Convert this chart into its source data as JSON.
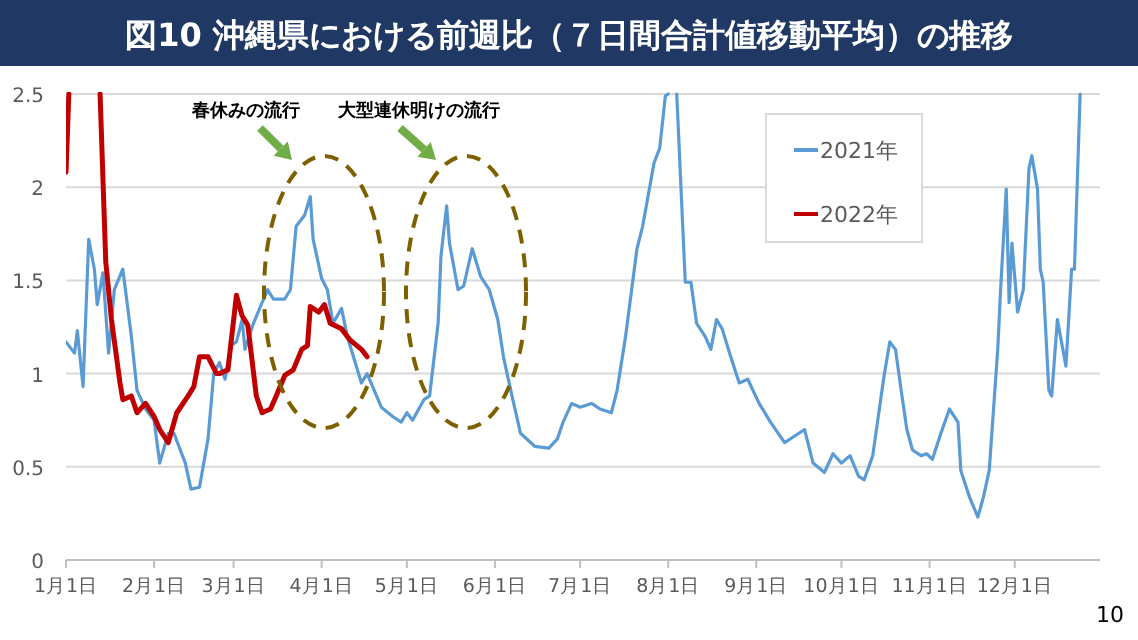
{
  "chart_data": {
    "type": "line",
    "title": "図10 沖縄県における前週比（７日間合計値移動平均）の推移",
    "xlim": [
      "--01-01",
      "--12-31"
    ],
    "xticks": [
      {
        "value": "--01-01",
        "label": "1月1日"
      },
      {
        "value": "--02-01",
        "label": "2月1日"
      },
      {
        "value": "--03-01",
        "label": "3月1日"
      },
      {
        "value": "--04-01",
        "label": "4月1日"
      },
      {
        "value": "--05-01",
        "label": "5月1日"
      },
      {
        "value": "--06-01",
        "label": "6月1日"
      },
      {
        "value": "--07-01",
        "label": "7月1日"
      },
      {
        "value": "--08-01",
        "label": "8月1日"
      },
      {
        "value": "--09-01",
        "label": "9月1日"
      },
      {
        "value": "--10-01",
        "label": "10月1日"
      },
      {
        "value": "--11-01",
        "label": "11月1日"
      },
      {
        "value": "--12-01",
        "label": "12月1日"
      }
    ],
    "ylim": [
      0,
      2.5
    ],
    "yticks": [
      0,
      0.5,
      1,
      1.5,
      2,
      2.5
    ],
    "grid": "y",
    "legend": "top right",
    "line_style": "solid",
    "marker": "none",
    "annotations": [
      "春休みの流行",
      "大型連休明けの流行",
      "10"
    ],
    "series": [
      {
        "name": "2021年",
        "color": "#5b9bd5",
        "x": [
          "--01-01",
          "--01-04",
          "--01-05",
          "--01-07",
          "--01-09",
          "--01-11",
          "--01-12",
          "--01-14",
          "--01-16",
          "--01-18",
          "--01-21",
          "--01-24",
          "--01-26",
          "--01-29",
          "--02-01",
          "--02-03",
          "--02-06",
          "--02-08",
          "--02-12",
          "--02-14",
          "--02-17",
          "--02-20",
          "--02-22",
          "--02-24",
          "--02-26",
          "--02-28",
          "--03-02",
          "--03-04",
          "--03-05",
          "--03-08",
          "--03-11",
          "--03-13",
          "--03-15",
          "--03-19",
          "--03-21",
          "--03-23",
          "--03-26",
          "--03-28",
          "--03-29",
          "--04-01",
          "--04-03",
          "--04-05",
          "--04-08",
          "--04-10",
          "--04-15",
          "--04-17",
          "--04-22",
          "--04-26",
          "--04-29",
          "--05-01",
          "--05-03",
          "--05-07",
          "--05-09",
          "--05-12",
          "--05-13",
          "--05-15",
          "--05-16",
          "--05-19",
          "--05-21",
          "--05-24",
          "--05-27",
          "--05-30",
          "--06-02",
          "--06-04",
          "--06-07",
          "--06-10",
          "--06-15",
          "--06-20",
          "--06-23",
          "--06-25",
          "--06-28",
          "--07-01",
          "--07-05",
          "--07-08",
          "--07-12",
          "--07-14",
          "--07-17",
          "--07-21",
          "--07-23",
          "--07-27",
          "--07-29",
          "--07-31",
          "--08-01",
          "--08-03",
          "--08-04",
          "--08-07",
          "--08-09",
          "--08-11",
          "--08-14",
          "--08-16",
          "--08-18",
          "--08-20",
          "--08-23",
          "--08-26",
          "--08-29",
          "--09-02",
          "--09-06",
          "--09-11",
          "--09-14",
          "--09-18",
          "--09-21",
          "--09-25",
          "--09-28",
          "--10-01",
          "--10-04",
          "--10-07",
          "--10-09",
          "--10-12",
          "--10-16",
          "--10-18",
          "--10-20",
          "--10-22",
          "--10-24",
          "--10-26",
          "--10-29",
          "--10-31",
          "--11-02",
          "--11-05",
          "--11-08",
          "--11-11",
          "--11-12",
          "--11-15",
          "--11-18",
          "--11-20",
          "--11-22",
          "--11-25",
          "--11-26",
          "--11-28",
          "--11-29",
          "--11-30",
          "--12-02",
          "--12-04",
          "--12-06",
          "--12-07",
          "--12-09",
          "--12-10",
          "--12-11",
          "--12-13",
          "--12-14",
          "--12-16",
          "--12-19",
          "--12-21",
          "--12-22",
          "--12-24"
        ],
        "values": [
          1.17,
          1.11,
          1.23,
          0.93,
          1.72,
          1.56,
          1.37,
          1.54,
          1.11,
          1.45,
          1.56,
          1.2,
          0.91,
          0.81,
          0.75,
          0.52,
          0.68,
          0.68,
          0.52,
          0.38,
          0.39,
          0.65,
          1.0,
          1.06,
          0.97,
          1.15,
          1.17,
          1.29,
          1.13,
          1.27,
          1.38,
          1.45,
          1.4,
          1.4,
          1.45,
          1.79,
          1.85,
          1.95,
          1.72,
          1.51,
          1.45,
          1.27,
          1.35,
          1.2,
          0.95,
          1.0,
          0.82,
          0.77,
          0.74,
          0.79,
          0.75,
          0.86,
          0.88,
          1.27,
          1.63,
          1.9,
          1.7,
          1.45,
          1.47,
          1.67,
          1.52,
          1.45,
          1.29,
          1.09,
          0.88,
          0.68,
          0.61,
          0.6,
          0.65,
          0.74,
          0.84,
          0.82,
          0.84,
          0.81,
          0.79,
          0.91,
          1.2,
          1.67,
          1.79,
          2.13,
          2.21,
          2.49,
          2.5,
          null,
          2.5,
          1.49,
          1.49,
          1.27,
          1.2,
          1.13,
          1.29,
          1.24,
          1.09,
          0.95,
          0.97,
          0.84,
          0.74,
          0.63,
          0.66,
          0.7,
          0.52,
          0.47,
          0.57,
          0.52,
          0.56,
          0.45,
          0.43,
          0.56,
          0.99,
          1.17,
          1.13,
          0.91,
          0.7,
          0.59,
          0.56,
          0.57,
          0.54,
          0.68,
          0.81,
          0.74,
          0.48,
          0.34,
          0.23,
          0.34,
          0.48,
          1.13,
          1.45,
          1.99,
          1.38,
          1.7,
          1.33,
          1.45,
          2.1,
          2.17,
          1.99,
          1.56,
          1.49,
          0.91,
          0.88,
          1.29,
          1.04,
          1.56,
          1.56,
          2.5
        ]
      },
      {
        "name": "2022年",
        "color": "#c00000",
        "x": [
          "--01-01",
          "--01-02",
          "--01-03",
          "--01-13",
          "--01-15",
          "--01-17",
          "--01-20",
          "--01-21",
          "--01-24",
          "--01-26",
          "--01-29",
          "--02-01",
          "--02-03",
          "--02-06",
          "--02-09",
          "--02-13",
          "--02-15",
          "--02-17",
          "--02-20",
          "--02-23",
          "--02-24",
          "--02-27",
          "--03-02",
          "--03-04",
          "--03-06",
          "--03-09",
          "--03-11",
          "--03-14",
          "--03-16",
          "--03-19",
          "--03-22",
          "--03-25",
          "--03-27",
          "--03-28",
          "--03-31",
          "--04-02",
          "--04-04",
          "--04-08",
          "--04-11",
          "--04-15",
          "--04-17"
        ],
        "values": [
          2.08,
          2.5,
          null,
          2.5,
          1.6,
          1.29,
          0.95,
          0.86,
          0.88,
          0.79,
          0.84,
          0.77,
          0.7,
          0.63,
          0.79,
          0.88,
          0.93,
          1.09,
          1.09,
          1.0,
          1.0,
          1.02,
          1.42,
          1.31,
          1.26,
          0.88,
          0.79,
          0.81,
          0.88,
          0.99,
          1.02,
          1.13,
          1.15,
          1.36,
          1.33,
          1.37,
          1.27,
          1.24,
          1.18,
          1.13,
          1.09
        ]
      }
    ]
  }
}
